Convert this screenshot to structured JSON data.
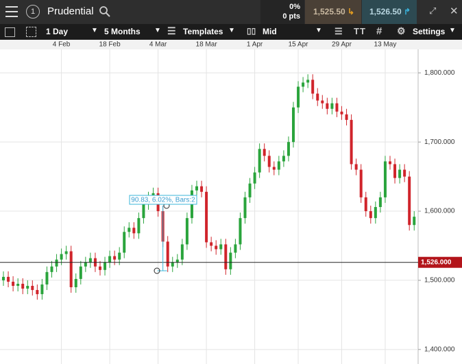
{
  "toolbar": {
    "badge": "1",
    "instrument": "Prudential",
    "change_pct": "0%",
    "change_pts": "0 pts",
    "sell": "1,525.50",
    "buy": "1,526.50",
    "interval": "1 Day",
    "range": "5 Months",
    "templates": "Templates",
    "price_type": "Mid",
    "settings": "Settings"
  },
  "chart_data": {
    "type": "candlestick",
    "categories": [
      null,
      null,
      null,
      null,
      null,
      null,
      null,
      null,
      null,
      null,
      null,
      null,
      "4 Feb",
      null,
      null,
      null,
      null,
      null,
      null,
      null,
      null,
      null,
      "18 Feb",
      null,
      null,
      null,
      null,
      null,
      null,
      null,
      null,
      null,
      "4 Mar",
      null,
      null,
      null,
      null,
      null,
      null,
      null,
      null,
      null,
      "18 Mar",
      null,
      null,
      null,
      null,
      null,
      null,
      null,
      null,
      null,
      "1 Apr",
      null,
      null,
      null,
      null,
      null,
      null,
      null,
      null,
      "15 Apr",
      null,
      null,
      null,
      null,
      null,
      null,
      null,
      null,
      "29 Apr",
      null,
      null,
      null,
      null,
      null,
      null,
      null,
      null,
      "13 May",
      null,
      null,
      null,
      null,
      null,
      null
    ],
    "open": [
      1500,
      1505,
      1498,
      1492,
      1495,
      1488,
      1492,
      1486,
      1480,
      1494,
      1512,
      1520,
      1530,
      1538,
      1542,
      1490,
      1502,
      1520,
      1526,
      1532,
      1520,
      1515,
      1526,
      1535,
      1530,
      1540,
      1570,
      1576,
      1568,
      1590,
      1610,
      1620,
      1626,
      1600,
      1556,
      1520,
      1526,
      1530,
      1552,
      1590,
      1630,
      1636,
      1628,
      1555,
      1550,
      1545,
      1552,
      1516,
      1540,
      1552,
      1590,
      1620,
      1640,
      1656,
      1690,
      1680,
      1664,
      1660,
      1672,
      1680,
      1700,
      1750,
      1780,
      1786,
      1790,
      1770,
      1760,
      1756,
      1748,
      1756,
      1744,
      1740,
      1732,
      1668,
      1660,
      1620,
      1600,
      1590,
      1606,
      1620,
      1672,
      1668,
      1648,
      1660,
      1650,
      1580
    ],
    "high": [
      1513,
      1513,
      1506,
      1503,
      1503,
      1500,
      1500,
      1494,
      1502,
      1520,
      1528,
      1538,
      1546,
      1550,
      1550,
      1510,
      1528,
      1534,
      1540,
      1540,
      1528,
      1534,
      1543,
      1543,
      1548,
      1578,
      1584,
      1584,
      1598,
      1618,
      1628,
      1634,
      1634,
      1608,
      1564,
      1534,
      1538,
      1560,
      1598,
      1638,
      1644,
      1644,
      1636,
      1563,
      1558,
      1560,
      1560,
      1548,
      1560,
      1598,
      1628,
      1648,
      1664,
      1698,
      1698,
      1688,
      1672,
      1680,
      1688,
      1708,
      1758,
      1788,
      1794,
      1798,
      1798,
      1778,
      1768,
      1764,
      1764,
      1764,
      1752,
      1748,
      1740,
      1676,
      1668,
      1628,
      1608,
      1614,
      1628,
      1680,
      1680,
      1676,
      1668,
      1668,
      1658,
      1600
    ],
    "low": [
      1492,
      1490,
      1484,
      1484,
      1480,
      1480,
      1478,
      1472,
      1472,
      1486,
      1504,
      1512,
      1522,
      1530,
      1482,
      1482,
      1494,
      1512,
      1518,
      1512,
      1507,
      1507,
      1518,
      1522,
      1522,
      1532,
      1562,
      1560,
      1560,
      1582,
      1602,
      1612,
      1592,
      1548,
      1512,
      1512,
      1518,
      1522,
      1544,
      1582,
      1622,
      1620,
      1547,
      1542,
      1537,
      1537,
      1508,
      1508,
      1532,
      1544,
      1582,
      1612,
      1632,
      1648,
      1672,
      1656,
      1652,
      1652,
      1664,
      1672,
      1692,
      1742,
      1772,
      1778,
      1762,
      1752,
      1748,
      1740,
      1740,
      1736,
      1732,
      1724,
      1660,
      1652,
      1612,
      1592,
      1582,
      1582,
      1598,
      1612,
      1660,
      1640,
      1640,
      1642,
      1572,
      1572
    ],
    "close": [
      1505,
      1498,
      1492,
      1495,
      1488,
      1492,
      1486,
      1480,
      1494,
      1512,
      1520,
      1530,
      1538,
      1542,
      1490,
      1502,
      1520,
      1526,
      1532,
      1520,
      1515,
      1526,
      1535,
      1530,
      1540,
      1570,
      1576,
      1568,
      1590,
      1610,
      1620,
      1626,
      1600,
      1556,
      1520,
      1526,
      1530,
      1552,
      1590,
      1630,
      1636,
      1628,
      1555,
      1550,
      1545,
      1552,
      1516,
      1540,
      1552,
      1590,
      1620,
      1640,
      1656,
      1690,
      1680,
      1664,
      1660,
      1672,
      1680,
      1700,
      1750,
      1780,
      1786,
      1790,
      1770,
      1760,
      1756,
      1748,
      1756,
      1744,
      1740,
      1732,
      1668,
      1660,
      1620,
      1600,
      1590,
      1606,
      1620,
      1672,
      1668,
      1648,
      1660,
      1650,
      1580,
      1592
    ],
    "up_color": "#2aa43c",
    "down_color": "#d0242b",
    "ylim": [
      1379,
      1834
    ],
    "yticks": [
      {
        "value": 1400,
        "label": "1,400.000"
      },
      {
        "value": 1500,
        "label": "1,500.000"
      },
      {
        "value": 1600,
        "label": "1,600.000"
      },
      {
        "value": 1700,
        "label": "1,700.000"
      },
      {
        "value": 1800,
        "label": "1,800.000"
      }
    ],
    "price_line": {
      "value": 1526,
      "label": "1,526.000"
    },
    "annotation": "90.83, 6.02%, Bars:2",
    "grid": true
  }
}
